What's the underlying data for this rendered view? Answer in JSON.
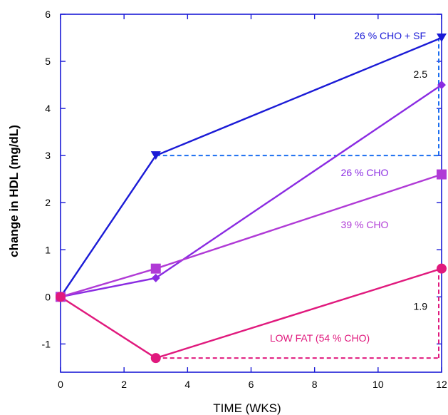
{
  "chart_data": {
    "type": "line",
    "xlabel": "TIME (WKS)",
    "ylabel": "change in HDL (mg/dL)",
    "xlim": [
      0,
      12
    ],
    "ylim": [
      -1.6,
      6
    ],
    "xticks": [
      0,
      2,
      4,
      6,
      8,
      10,
      12
    ],
    "yticks": [
      -1,
      0,
      1,
      2,
      3,
      4,
      5,
      6
    ],
    "series": [
      {
        "name": "26 % CHO + SF",
        "color": "#1a1ad6",
        "marker": "triangle-down",
        "x": [
          0,
          3,
          12
        ],
        "y": [
          0,
          3.0,
          5.5
        ]
      },
      {
        "name": "26 % CHO",
        "color": "#8a2be2",
        "marker": "diamond",
        "x": [
          0,
          3,
          12
        ],
        "y": [
          0,
          0.4,
          4.5
        ]
      },
      {
        "name": "39 % CHO",
        "color": "#b03ad6",
        "marker": "square",
        "x": [
          0,
          3,
          12
        ],
        "y": [
          0,
          0.6,
          2.6
        ]
      },
      {
        "name": "LOW FAT (54 % CHO)",
        "color": "#e0197d",
        "marker": "circle",
        "x": [
          0,
          3,
          12
        ],
        "y": [
          0,
          -1.3,
          0.6
        ]
      }
    ],
    "annotations": [
      {
        "text": "2.5",
        "color": "#1a6ef0",
        "x": 12,
        "y_from": 3.0,
        "y_to": 5.5,
        "baseline_x_from": 3
      },
      {
        "text": "1.9",
        "color": "#e0197d",
        "x": 12,
        "y_from": -1.3,
        "y_to": 0.6,
        "baseline_x_from": 3
      }
    ]
  }
}
